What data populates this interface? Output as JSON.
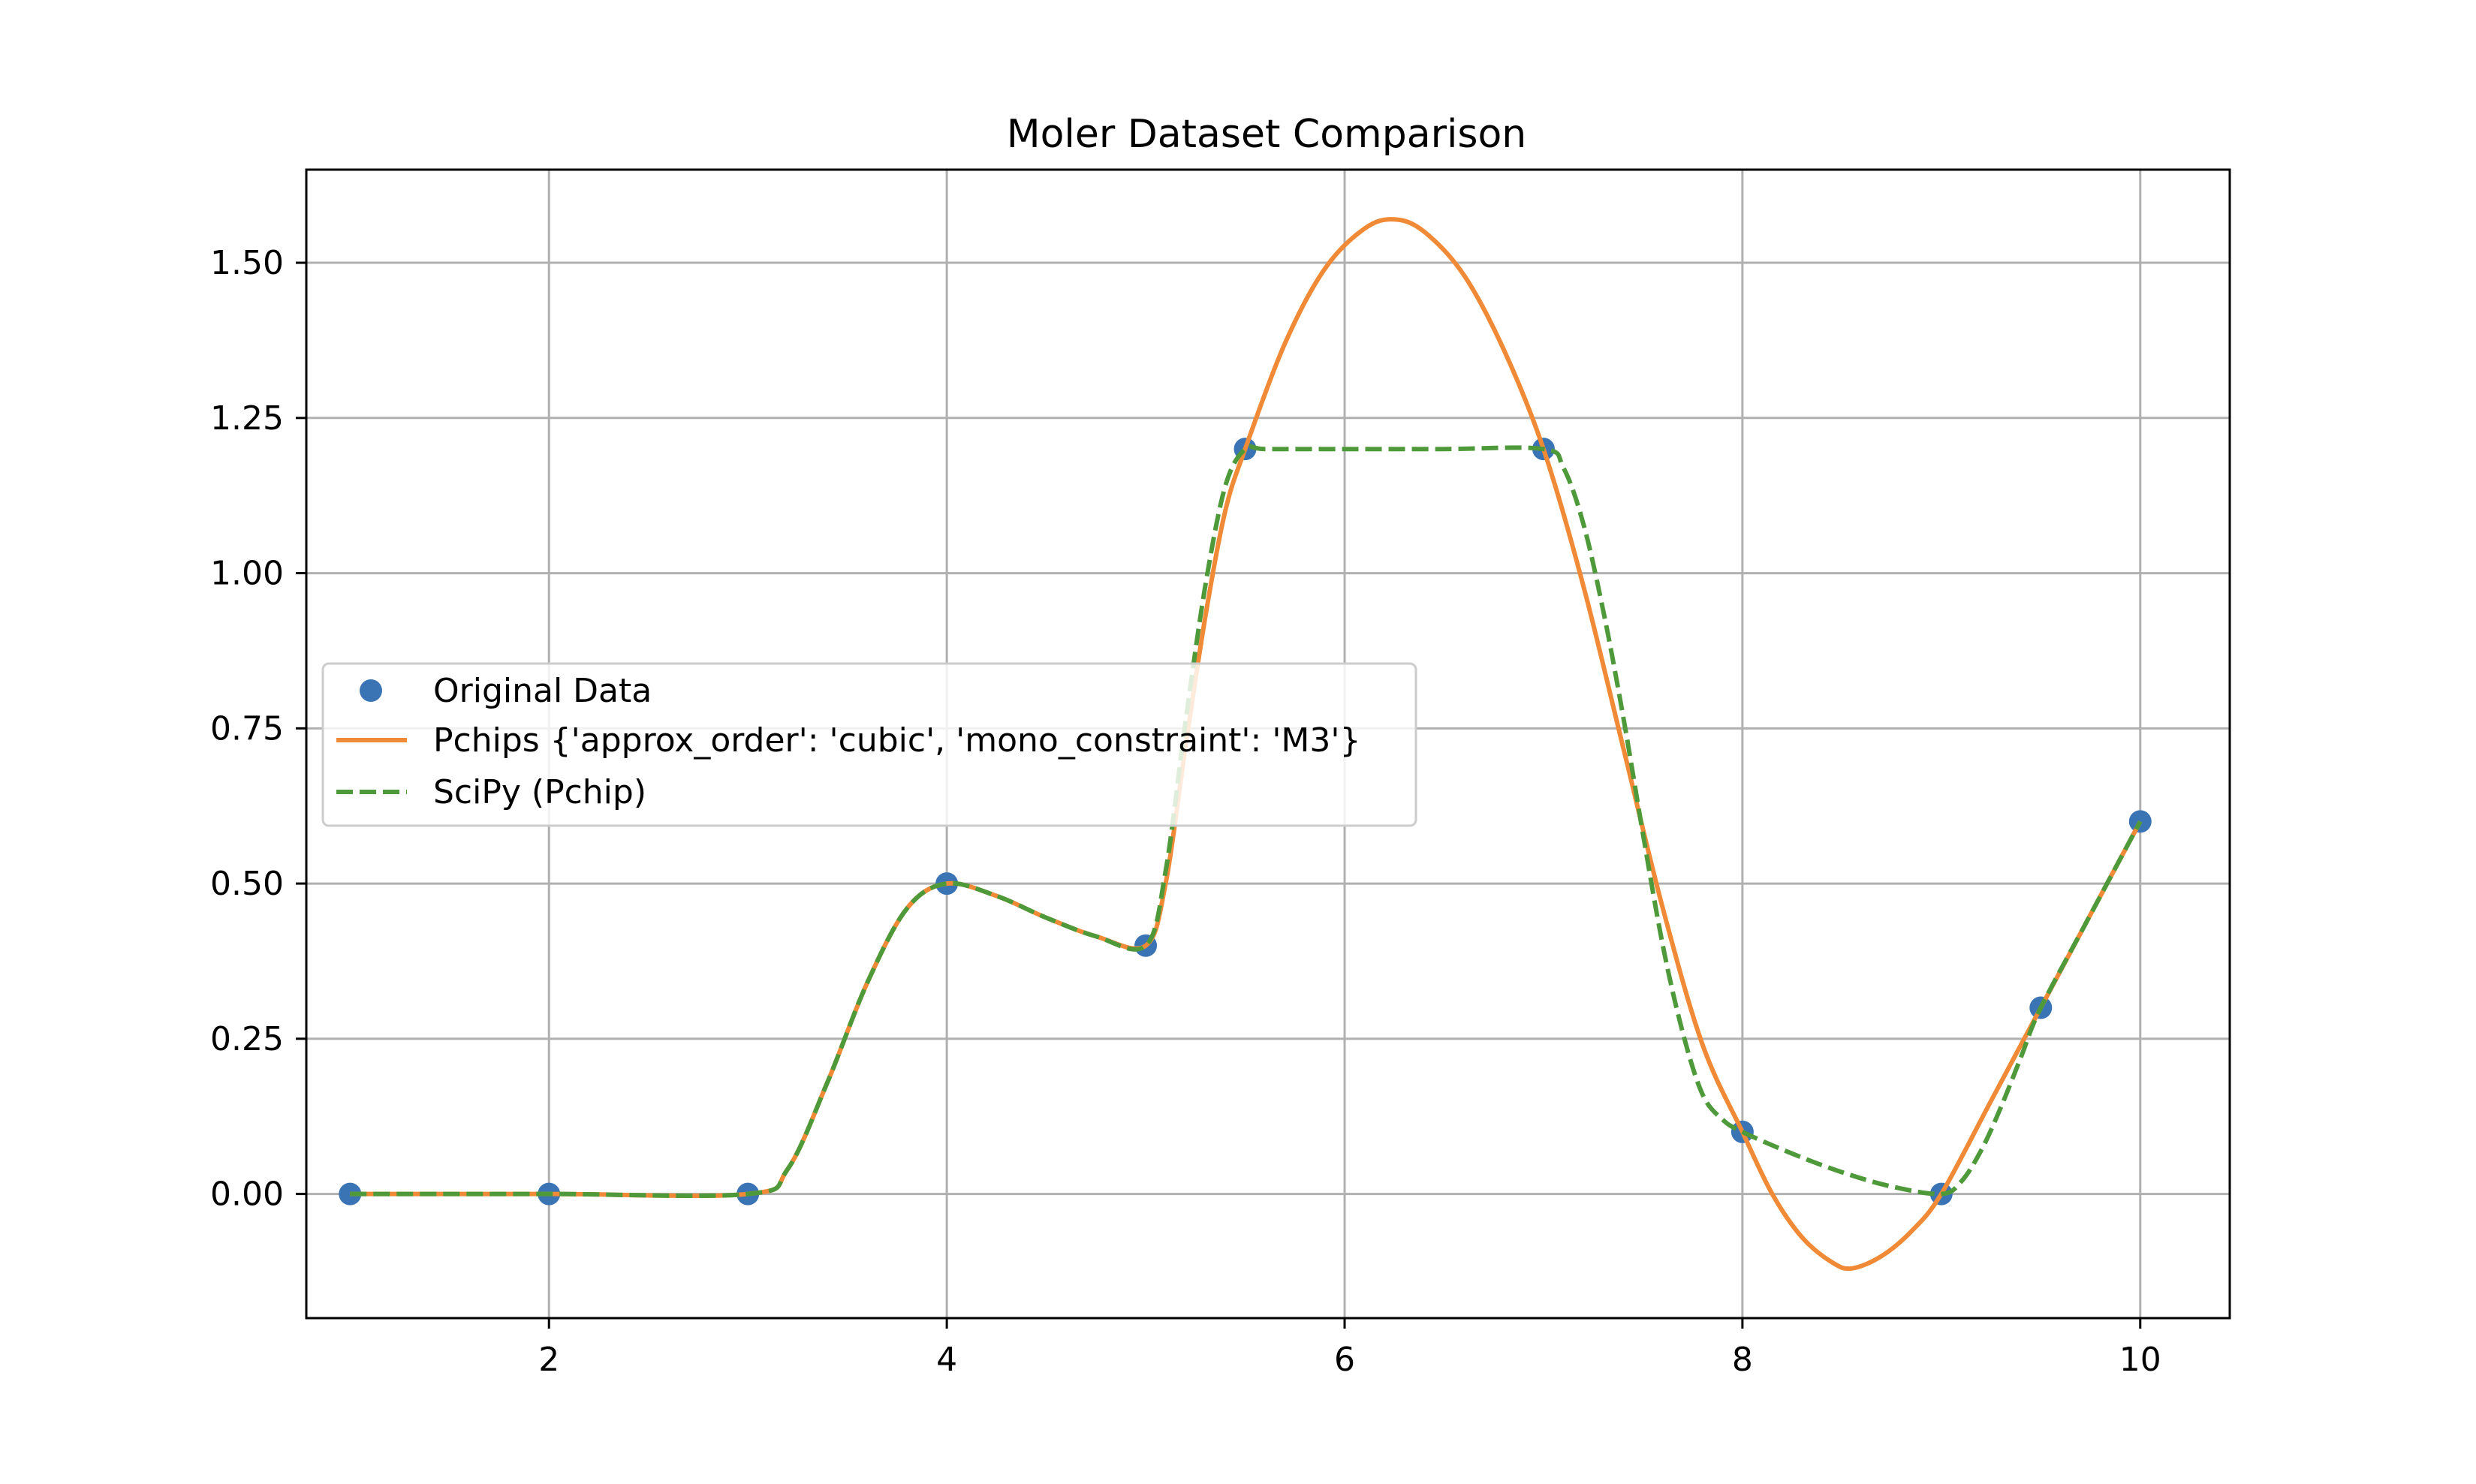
{
  "chart_data": {
    "type": "line",
    "title": "Moler Dataset Comparison",
    "xlabel": "",
    "ylabel": "",
    "xlim": [
      0.78,
      10.45
    ],
    "ylim": [
      -0.2,
      1.65
    ],
    "xticks": [
      2,
      4,
      6,
      8,
      10
    ],
    "xtick_labels": [
      "2",
      "4",
      "6",
      "8",
      "10"
    ],
    "yticks": [
      0.0,
      0.25,
      0.5,
      0.75,
      1.0,
      1.25,
      1.5
    ],
    "ytick_labels": [
      "0.00",
      "0.25",
      "0.50",
      "0.75",
      "1.00",
      "1.25",
      "1.50"
    ],
    "grid": true,
    "legend_position": "center-left",
    "series": [
      {
        "name": "Original Data",
        "kind": "scatter",
        "color": "#3a74b4",
        "x": [
          1,
          2,
          3,
          4,
          5,
          5.5,
          7,
          8,
          9,
          9.5,
          10
        ],
        "y": [
          0,
          0,
          0,
          0.5,
          0.4,
          1.2,
          1.2,
          0.1,
          0,
          0.3,
          0.6
        ]
      },
      {
        "name": "Pchips {'approx_order': 'cubic', 'mono_constraint': 'M3'}",
        "kind": "line",
        "style": "solid",
        "color": "#f08a36",
        "x": [
          1,
          2,
          3,
          3.2,
          3.4,
          3.6,
          3.8,
          4,
          4.25,
          4.5,
          4.75,
          5,
          5.1,
          5.2,
          5.3,
          5.4,
          5.5,
          5.7,
          5.9,
          6.1,
          6.25,
          6.4,
          6.6,
          6.8,
          7,
          7.2,
          7.4,
          7.6,
          7.8,
          8,
          8.15,
          8.3,
          8.45,
          8.55,
          8.7,
          8.85,
          9,
          9.25,
          9.5,
          9.75,
          10
        ],
        "y": [
          0,
          0,
          0,
          0.04,
          0.18,
          0.34,
          0.46,
          0.5,
          0.48,
          0.445,
          0.415,
          0.4,
          0.5,
          0.72,
          0.93,
          1.1,
          1.2,
          1.37,
          1.49,
          1.555,
          1.57,
          1.55,
          1.48,
          1.36,
          1.2,
          0.98,
          0.72,
          0.46,
          0.24,
          0.1,
          0.0,
          -0.07,
          -0.11,
          -0.12,
          -0.1,
          -0.06,
          0,
          0.15,
          0.3,
          0.45,
          0.6
        ]
      },
      {
        "name": "SciPy (Pchip)",
        "kind": "line",
        "style": "dashed",
        "color": "#4e9a3a",
        "x": [
          1,
          2,
          3,
          3.2,
          3.4,
          3.6,
          3.8,
          4,
          4.25,
          4.5,
          4.75,
          5,
          5.1,
          5.2,
          5.3,
          5.4,
          5.5,
          5.6,
          6,
          6.5,
          7,
          7.1,
          7.2,
          7.3,
          7.4,
          7.5,
          7.6,
          7.7,
          7.8,
          7.9,
          8,
          8.25,
          8.5,
          8.75,
          9,
          9.1,
          9.2,
          9.3,
          9.4,
          9.5,
          9.75,
          10
        ],
        "y": [
          0,
          0,
          0,
          0.04,
          0.18,
          0.34,
          0.46,
          0.5,
          0.48,
          0.445,
          0.415,
          0.4,
          0.52,
          0.76,
          0.98,
          1.14,
          1.2,
          1.2,
          1.2,
          1.2,
          1.2,
          1.17,
          1.08,
          0.94,
          0.77,
          0.58,
          0.4,
          0.26,
          0.16,
          0.12,
          0.1,
          0.065,
          0.035,
          0.012,
          0,
          0.02,
          0.07,
          0.14,
          0.22,
          0.3,
          0.45,
          0.6
        ]
      }
    ]
  }
}
